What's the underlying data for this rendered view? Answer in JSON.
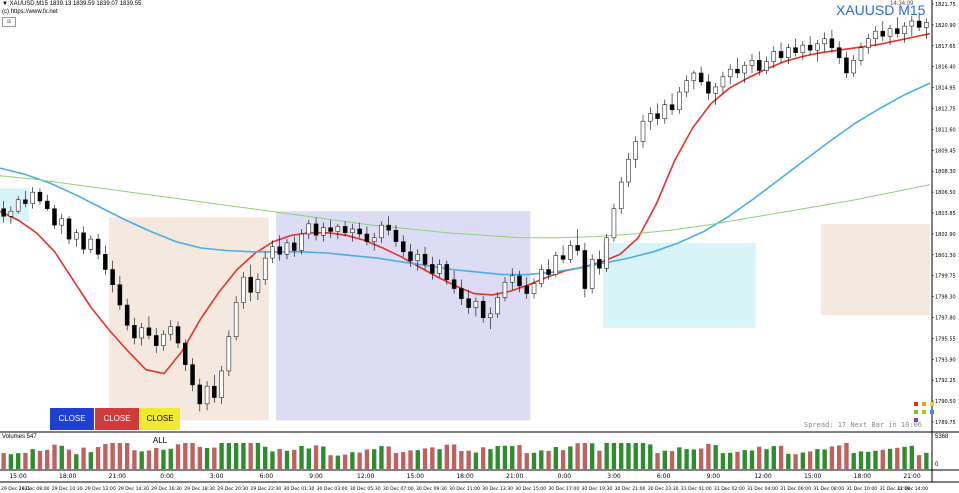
{
  "header": {
    "info_line": "▼ XAUUSD,M15  1839.13 1839.59 1839.07 1839.55",
    "url": "(c) https://www.fx.net",
    "symbol_label": "XAUUSD M15",
    "clock": "14:34:09"
  },
  "buttons": {
    "close_sell": "CLOSE SELL",
    "close_buy": "CLOSE BUY",
    "close_all": "CLOSE ALL"
  },
  "status": {
    "spread_text": "Spread: 17  Next Bar in 10:06"
  },
  "volumes": {
    "label": "Volumes 547",
    "axis_top": "5368",
    "axis_bottom": "0"
  },
  "price_axis": [
    "1821.75",
    "1820.90",
    "1817.65",
    "1816.40",
    "1814.95",
    "1812.75",
    "1811.60",
    "1809.45",
    "1808.30",
    "1806.50",
    "1803.85",
    "1802.90",
    "1801.30",
    "1799.75",
    "1798.30",
    "1797.80",
    "1795.55",
    "1793.90",
    "1792.25",
    "1790.50",
    "1789.75"
  ],
  "time_labels": [
    "15:00",
    "18:00",
    "21:00",
    "0:00",
    "3:00",
    "6:00",
    "9:00",
    "12:00",
    "15:00",
    "18:00",
    "21:00",
    "0:00",
    "3:00",
    "6:00",
    "9:00",
    "12:00",
    "15:00",
    "18:00",
    "21:00"
  ],
  "date_labels": [
    "29 Dec 2021",
    "29 Dec 08:00",
    "29 Dec 10:30",
    "29 Dec 12:00",
    "29 Dec 14:30",
    "29 Dec 16:30",
    "29 Dec 18:30",
    "29 Dec 20:30",
    "29 Dec 22:30",
    "30 Dec 01:30",
    "30 Dec 03:00",
    "30 Dec 05:30",
    "30 Dec 07:00",
    "30 Dec 09:30",
    "30 Dec 11:00",
    "30 Dec 13:30",
    "30 Dec 15:00",
    "30 Dec 17:00",
    "30 Dec 19:30",
    "30 Dec 21:00",
    "30 Dec 23:30",
    "31 Dec 01:00",
    "31 Dec 02:00",
    "31 Dec 04:00",
    "31 Dec 06:00",
    "31 Dec 08:00",
    "31 Dec 10:00",
    "31 Dec 12:00",
    "31 Dec 14:00"
  ],
  "colors": {
    "bull": "#000000",
    "bear": "#000000",
    "ma_fast": "#e8312a",
    "ma_mid": "#4aaee6",
    "ma_slow": "#8fd07a",
    "zone_asia": "#f5e9df",
    "zone_europe": "#dcdcf4",
    "zone_us": "#d8f4f8",
    "vol_up": "#2e8b2e",
    "vol_down": "#c06060",
    "symbol": "#2a6ae0"
  },
  "chart_data": {
    "type": "candlestick",
    "symbol": "XAUUSD",
    "timeframe": "M15",
    "ylim": [
      1788.9,
      1822.5
    ],
    "candles": [
      [
        1806.2,
        1806.8,
        1805.1,
        1805.6
      ],
      [
        1805.6,
        1806.4,
        1805.0,
        1806.0
      ],
      [
        1806.0,
        1807.2,
        1805.8,
        1806.9
      ],
      [
        1806.9,
        1807.6,
        1806.3,
        1806.6
      ],
      [
        1806.6,
        1807.9,
        1806.2,
        1807.5
      ],
      [
        1807.5,
        1807.8,
        1806.5,
        1806.8
      ],
      [
        1806.8,
        1807.3,
        1806.0,
        1806.2
      ],
      [
        1806.2,
        1806.5,
        1804.6,
        1804.9
      ],
      [
        1804.9,
        1805.8,
        1804.2,
        1805.4
      ],
      [
        1805.4,
        1805.6,
        1803.4,
        1803.8
      ],
      [
        1803.8,
        1804.6,
        1803.2,
        1804.3
      ],
      [
        1804.3,
        1804.8,
        1802.6,
        1803.0
      ],
      [
        1803.0,
        1804.1,
        1802.7,
        1803.8
      ],
      [
        1803.8,
        1804.2,
        1802.2,
        1802.6
      ],
      [
        1802.6,
        1803.3,
        1801.0,
        1801.4
      ],
      [
        1801.4,
        1802.1,
        1799.6,
        1800.2
      ],
      [
        1800.2,
        1800.9,
        1798.2,
        1798.6
      ],
      [
        1798.6,
        1799.1,
        1796.6,
        1797.0
      ],
      [
        1797.0,
        1797.6,
        1795.5,
        1796.0
      ],
      [
        1796.0,
        1797.2,
        1795.4,
        1796.8
      ],
      [
        1796.8,
        1797.7,
        1795.9,
        1796.2
      ],
      [
        1796.2,
        1796.8,
        1794.8,
        1795.4
      ],
      [
        1795.4,
        1796.6,
        1795.0,
        1796.3
      ],
      [
        1796.3,
        1797.4,
        1795.8,
        1796.9
      ],
      [
        1796.9,
        1797.3,
        1795.2,
        1795.6
      ],
      [
        1795.6,
        1795.9,
        1793.4,
        1793.9
      ],
      [
        1793.9,
        1794.4,
        1791.8,
        1792.3
      ],
      [
        1792.3,
        1792.8,
        1790.2,
        1790.8
      ],
      [
        1790.8,
        1792.6,
        1790.3,
        1792.2
      ],
      [
        1792.2,
        1793.1,
        1790.9,
        1791.3
      ],
      [
        1791.3,
        1793.8,
        1790.8,
        1793.4
      ],
      [
        1793.4,
        1796.6,
        1793.0,
        1796.1
      ],
      [
        1796.1,
        1799.3,
        1795.8,
        1798.8
      ],
      [
        1798.8,
        1801.2,
        1798.3,
        1800.8
      ],
      [
        1800.8,
        1801.8,
        1798.9,
        1799.6
      ],
      [
        1799.6,
        1801.1,
        1799.0,
        1800.6
      ],
      [
        1800.6,
        1802.8,
        1800.2,
        1802.3
      ],
      [
        1802.3,
        1803.7,
        1801.9,
        1803.2
      ],
      [
        1803.2,
        1804.1,
        1802.1,
        1802.6
      ],
      [
        1802.6,
        1803.8,
        1802.2,
        1803.5
      ],
      [
        1803.5,
        1804.0,
        1802.4,
        1802.9
      ],
      [
        1802.9,
        1804.6,
        1802.6,
        1804.2
      ],
      [
        1804.2,
        1805.3,
        1803.8,
        1805.0
      ],
      [
        1805.0,
        1805.5,
        1803.7,
        1804.1
      ],
      [
        1804.1,
        1805.1,
        1803.6,
        1804.7
      ],
      [
        1804.7,
        1805.3,
        1803.9,
        1804.4
      ],
      [
        1804.4,
        1805.0,
        1803.8,
        1804.8
      ],
      [
        1804.8,
        1805.2,
        1804.0,
        1804.3
      ],
      [
        1804.3,
        1805.0,
        1803.6,
        1804.6
      ],
      [
        1804.6,
        1805.1,
        1803.9,
        1804.2
      ],
      [
        1804.2,
        1804.8,
        1803.3,
        1803.6
      ],
      [
        1803.6,
        1804.3,
        1802.9,
        1803.9
      ],
      [
        1803.9,
        1805.2,
        1803.5,
        1804.9
      ],
      [
        1804.9,
        1805.6,
        1804.1,
        1804.5
      ],
      [
        1804.5,
        1804.9,
        1803.2,
        1803.6
      ],
      [
        1803.6,
        1804.1,
        1802.4,
        1802.8
      ],
      [
        1802.8,
        1803.4,
        1801.6,
        1802.1
      ],
      [
        1802.1,
        1803.0,
        1801.3,
        1802.6
      ],
      [
        1802.6,
        1803.2,
        1801.4,
        1801.8
      ],
      [
        1801.8,
        1802.4,
        1800.6,
        1801.1
      ],
      [
        1801.1,
        1802.2,
        1800.8,
        1801.8
      ],
      [
        1801.8,
        1802.1,
        1800.2,
        1800.6
      ],
      [
        1800.6,
        1801.3,
        1799.5,
        1799.9
      ],
      [
        1799.9,
        1800.6,
        1798.6,
        1799.1
      ],
      [
        1799.1,
        1799.8,
        1797.9,
        1798.4
      ],
      [
        1798.4,
        1799.2,
        1797.7,
        1798.9
      ],
      [
        1798.9,
        1799.3,
        1797.2,
        1797.6
      ],
      [
        1797.6,
        1798.4,
        1796.7,
        1797.9
      ],
      [
        1797.9,
        1799.6,
        1797.6,
        1799.2
      ],
      [
        1799.2,
        1800.8,
        1798.9,
        1800.4
      ],
      [
        1800.4,
        1801.5,
        1799.8,
        1800.9
      ],
      [
        1800.9,
        1801.3,
        1799.6,
        1800.1
      ],
      [
        1800.1,
        1800.8,
        1799.1,
        1799.5
      ],
      [
        1799.5,
        1800.7,
        1799.1,
        1800.3
      ],
      [
        1800.3,
        1801.8,
        1800.0,
        1801.4
      ],
      [
        1801.4,
        1802.2,
        1800.6,
        1801.0
      ],
      [
        1801.0,
        1802.8,
        1800.8,
        1802.5
      ],
      [
        1802.5,
        1803.3,
        1801.9,
        1802.2
      ],
      [
        1802.2,
        1803.7,
        1801.9,
        1803.3
      ],
      [
        1803.3,
        1804.6,
        1802.5,
        1802.9
      ],
      [
        1802.9,
        1803.5,
        1799.2,
        1799.9
      ],
      [
        1799.9,
        1802.6,
        1799.5,
        1802.2
      ],
      [
        1802.2,
        1802.9,
        1801.0,
        1801.5
      ],
      [
        1801.5,
        1804.2,
        1801.2,
        1803.9
      ],
      [
        1803.9,
        1806.6,
        1803.6,
        1806.2
      ],
      [
        1806.2,
        1808.7,
        1805.8,
        1808.3
      ],
      [
        1808.3,
        1810.6,
        1807.9,
        1810.1
      ],
      [
        1810.1,
        1811.9,
        1809.4,
        1811.5
      ],
      [
        1811.5,
        1813.6,
        1811.0,
        1813.1
      ],
      [
        1813.1,
        1814.2,
        1812.4,
        1813.7
      ],
      [
        1813.7,
        1814.5,
        1812.8,
        1813.3
      ],
      [
        1813.3,
        1814.8,
        1812.9,
        1814.4
      ],
      [
        1814.4,
        1815.3,
        1813.6,
        1814.0
      ],
      [
        1814.0,
        1815.8,
        1813.7,
        1815.4
      ],
      [
        1815.4,
        1816.7,
        1815.0,
        1816.3
      ],
      [
        1816.3,
        1817.1,
        1815.6,
        1816.9
      ],
      [
        1816.9,
        1817.4,
        1815.9,
        1816.2
      ],
      [
        1816.2,
        1816.8,
        1814.8,
        1815.3
      ],
      [
        1815.3,
        1816.1,
        1814.4,
        1815.8
      ],
      [
        1815.8,
        1817.0,
        1815.3,
        1816.6
      ],
      [
        1816.6,
        1817.6,
        1816.0,
        1817.2
      ],
      [
        1817.2,
        1818.1,
        1816.5,
        1816.9
      ],
      [
        1816.9,
        1817.8,
        1816.1,
        1817.5
      ],
      [
        1817.5,
        1818.4,
        1816.9,
        1817.9
      ],
      [
        1817.9,
        1818.6,
        1816.7,
        1817.1
      ],
      [
        1817.1,
        1818.2,
        1816.8,
        1817.8
      ],
      [
        1817.8,
        1819.0,
        1817.3,
        1818.6
      ],
      [
        1818.6,
        1819.3,
        1817.7,
        1818.1
      ],
      [
        1818.1,
        1819.2,
        1817.6,
        1818.9
      ],
      [
        1818.9,
        1819.6,
        1818.2,
        1818.5
      ],
      [
        1818.5,
        1819.4,
        1817.9,
        1819.1
      ],
      [
        1819.1,
        1819.8,
        1818.3,
        1818.7
      ],
      [
        1818.7,
        1819.5,
        1817.8,
        1819.2
      ],
      [
        1819.2,
        1820.1,
        1818.6,
        1819.6
      ],
      [
        1819.6,
        1820.3,
        1818.5,
        1818.9
      ],
      [
        1818.9,
        1819.4,
        1817.6,
        1818.1
      ],
      [
        1818.1,
        1818.6,
        1816.5,
        1816.9
      ],
      [
        1816.9,
        1818.3,
        1816.6,
        1817.9
      ],
      [
        1817.9,
        1819.3,
        1817.5,
        1818.9
      ],
      [
        1818.9,
        1820.0,
        1818.4,
        1819.6
      ],
      [
        1819.6,
        1820.6,
        1819.0,
        1820.2
      ],
      [
        1820.2,
        1821.0,
        1819.4,
        1819.8
      ],
      [
        1819.8,
        1820.7,
        1819.1,
        1820.4
      ],
      [
        1820.4,
        1821.3,
        1819.7,
        1820.0
      ],
      [
        1820.0,
        1820.9,
        1819.3,
        1820.6
      ],
      [
        1820.6,
        1821.4,
        1819.8,
        1821.0
      ],
      [
        1821.0,
        1821.6,
        1820.2,
        1820.5
      ],
      [
        1820.5,
        1821.2,
        1819.6,
        1820.9
      ]
    ],
    "series_styles": [
      {
        "color": "#e8312a"
      },
      {
        "color": "#4aaee6"
      },
      {
        "color": "#8fd07a"
      }
    ],
    "ma_fast": [
      1806.0,
      1805.3,
      1804.3,
      1802.8,
      1800.6,
      1798.4,
      1796.6,
      1795.0,
      1793.5,
      1793.2,
      1795.0,
      1797.5,
      1799.6,
      1801.4,
      1802.7,
      1803.6,
      1804.1,
      1804.3,
      1804.3,
      1804.1,
      1803.7,
      1803.1,
      1802.4,
      1801.6,
      1800.8,
      1800.1,
      1799.5,
      1799.4,
      1799.7,
      1800.2,
      1800.8,
      1801.3,
      1801.6,
      1802.0,
      1802.6,
      1803.9,
      1806.6,
      1810.0,
      1812.6,
      1814.5,
      1815.7,
      1816.5,
      1817.2,
      1817.8,
      1818.2,
      1818.5,
      1818.7,
      1818.9,
      1819.1,
      1819.4,
      1819.7,
      1820.0
    ],
    "ma_mid": [
      1809.4,
      1808.9,
      1808.2,
      1807.3,
      1806.3,
      1805.3,
      1804.4,
      1803.6,
      1803.1,
      1802.9,
      1802.8,
      1802.8,
      1802.8,
      1802.7,
      1802.5,
      1802.3,
      1802.0,
      1801.7,
      1801.4,
      1801.2,
      1801.0,
      1801.0,
      1801.2,
      1801.5,
      1801.9,
      1802.3,
      1802.8,
      1803.5,
      1804.4,
      1805.6,
      1807.0,
      1808.5,
      1810.0,
      1811.5,
      1812.9,
      1814.1,
      1815.2,
      1816.1
    ],
    "ma_slow": [
      1808.8,
      1808.5,
      1808.1,
      1807.7,
      1807.3,
      1806.9,
      1806.5,
      1806.1,
      1805.7,
      1805.3,
      1804.9,
      1804.6,
      1804.3,
      1804.1,
      1803.9,
      1803.9,
      1804.0,
      1804.2,
      1804.5,
      1804.9,
      1805.4,
      1805.9,
      1806.4,
      1806.9,
      1807.5,
      1808.1
    ]
  }
}
